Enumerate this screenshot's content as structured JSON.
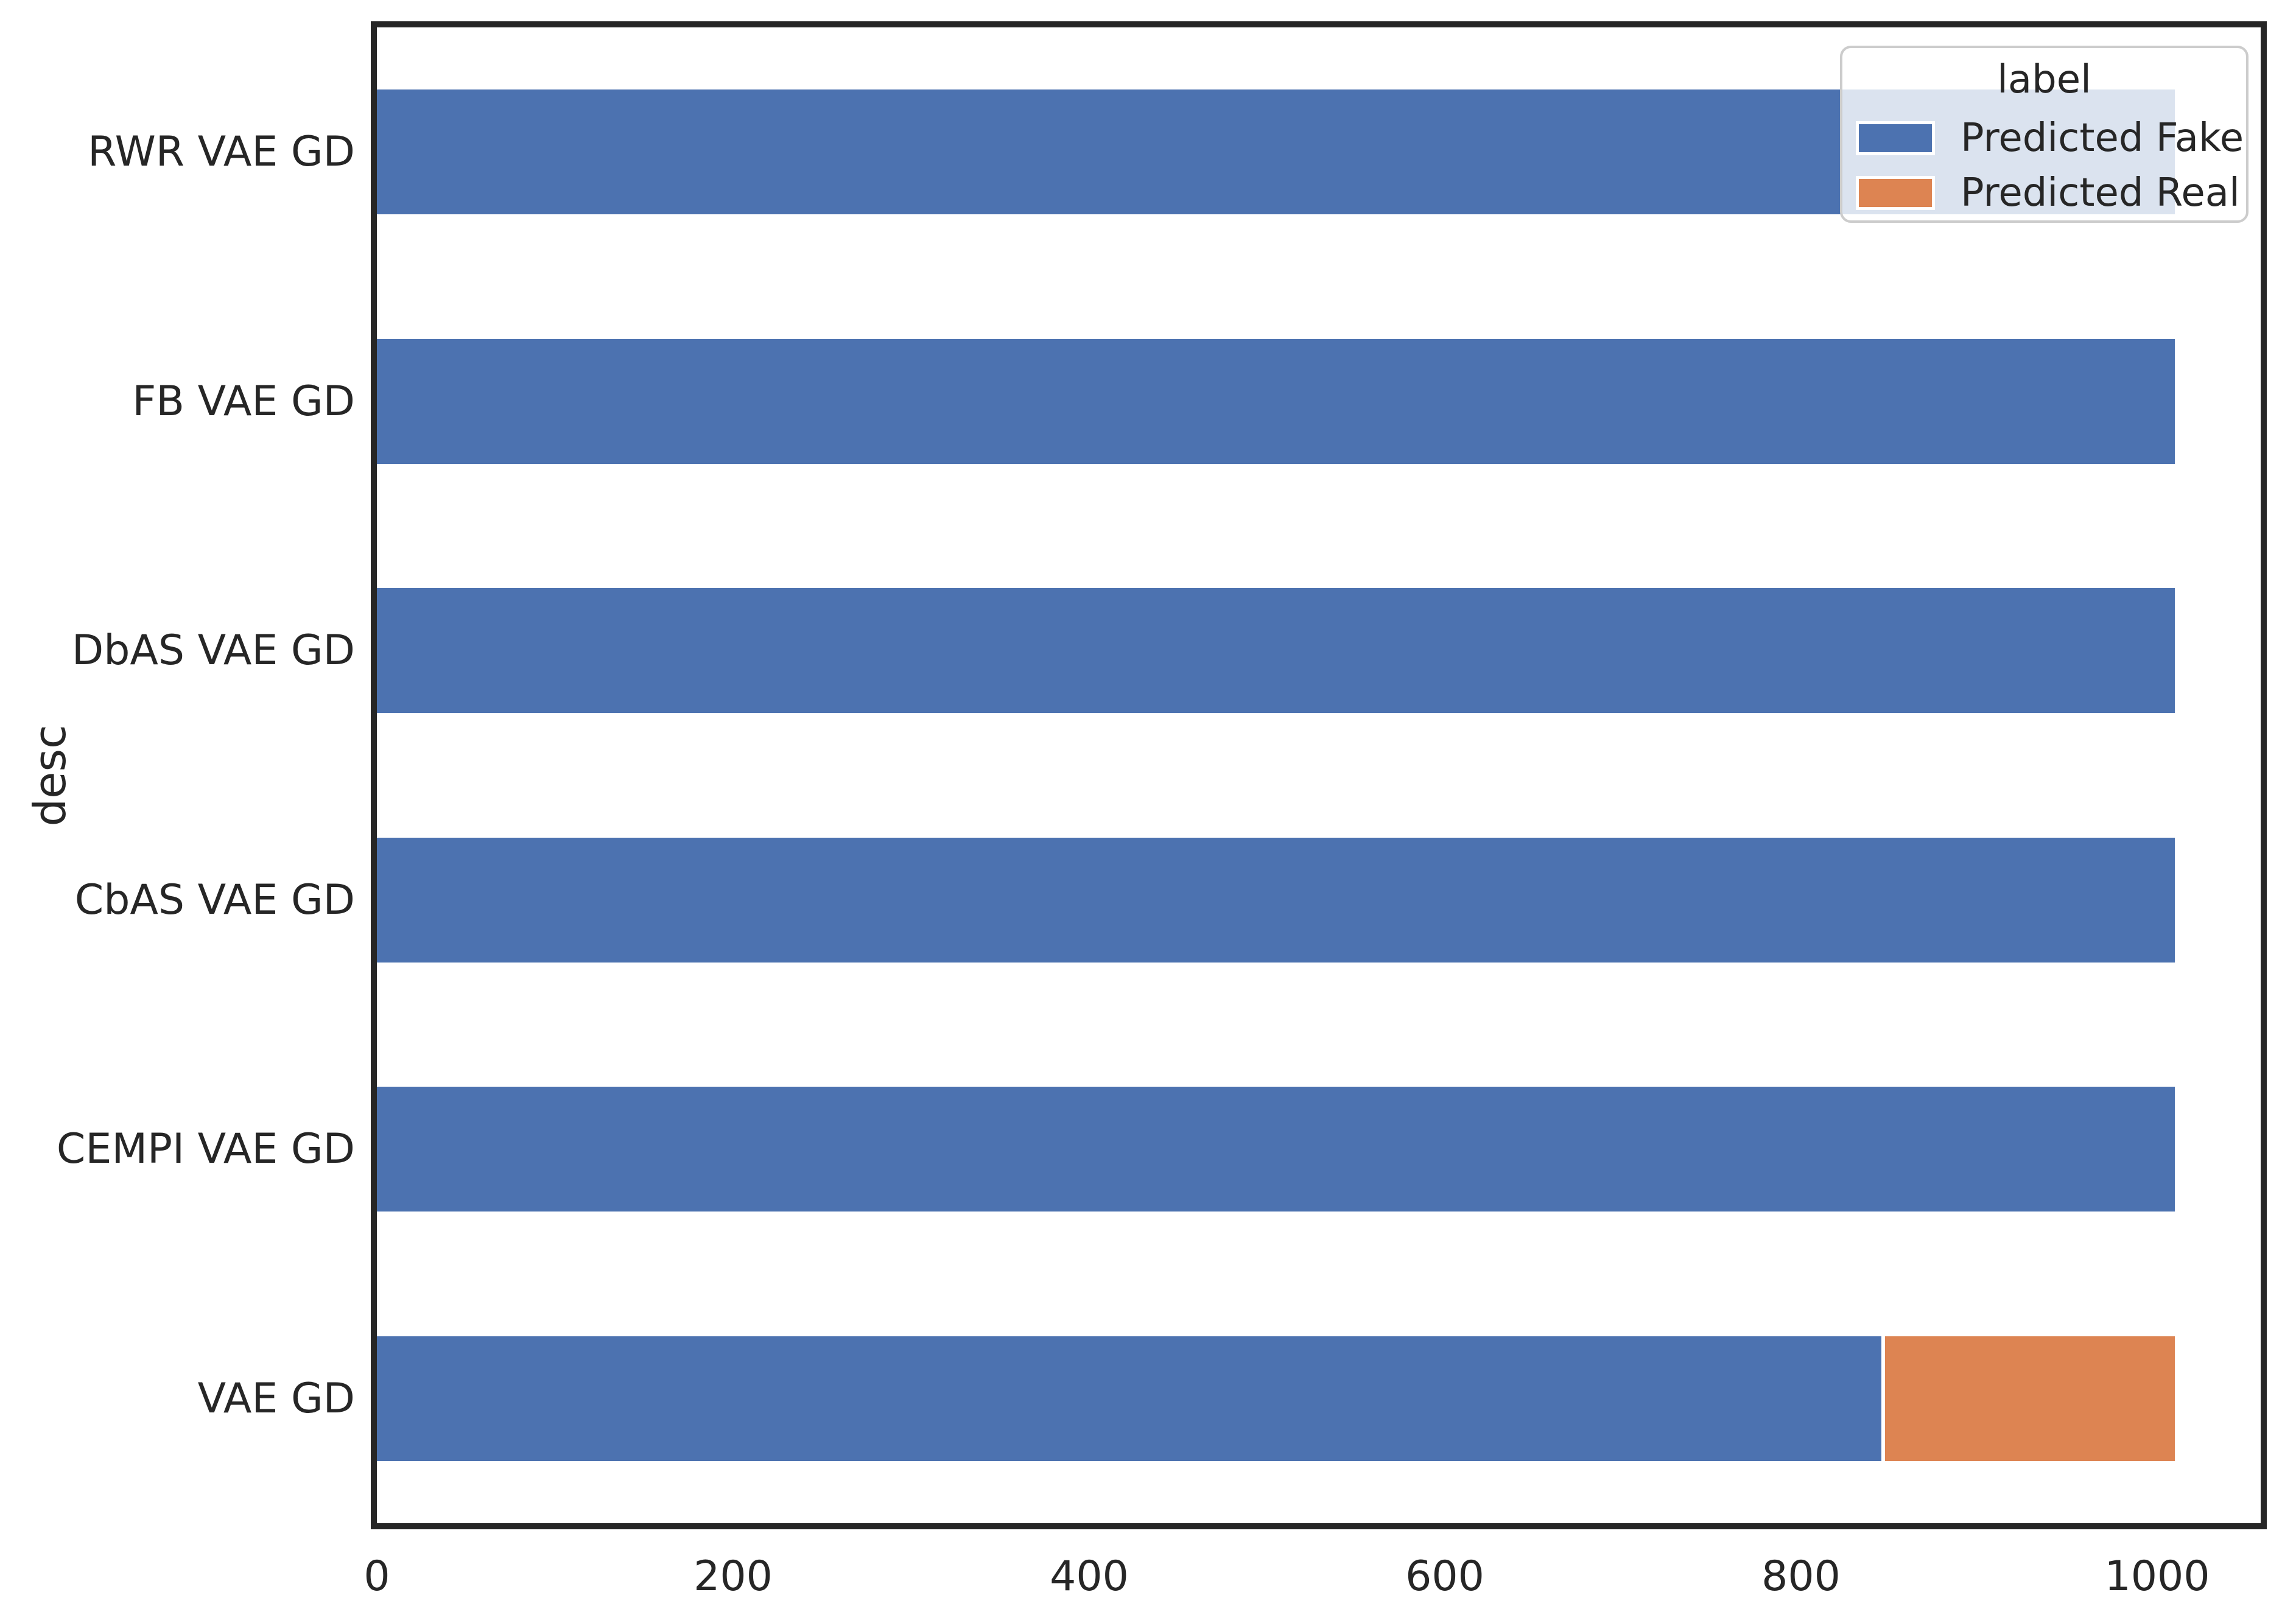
{
  "chart_data": {
    "type": "bar",
    "orientation": "horizontal",
    "stacked": true,
    "title": "",
    "xlabel": "",
    "ylabel": "desc",
    "categories": [
      "RWR VAE GD",
      "FB VAE GD",
      "DbAS VAE GD",
      "CbAS VAE GD",
      "CEMPI VAE GD",
      "VAE GD"
    ],
    "series": [
      {
        "name": "Predicted Fake",
        "color": "#4C72B0",
        "values": [
          1010,
          1010,
          1010,
          1010,
          1010,
          845
        ]
      },
      {
        "name": "Predicted Real",
        "color": "#DD8452",
        "values": [
          0,
          0,
          0,
          0,
          0,
          165
        ]
      }
    ],
    "xticks": [
      0,
      200,
      400,
      600,
      800,
      1000
    ],
    "xlim": [
      0,
      1058
    ],
    "grid": false,
    "legend": {
      "title": "label",
      "position": "upper right",
      "entries": [
        "Predicted Fake",
        "Predicted Real"
      ]
    },
    "colors": {
      "bar_fake": "#4C72B0",
      "bar_real": "#DD8452",
      "text": "#262626",
      "spine": "#262626",
      "legend_border": "#cccccc",
      "background": "#ffffff"
    }
  }
}
